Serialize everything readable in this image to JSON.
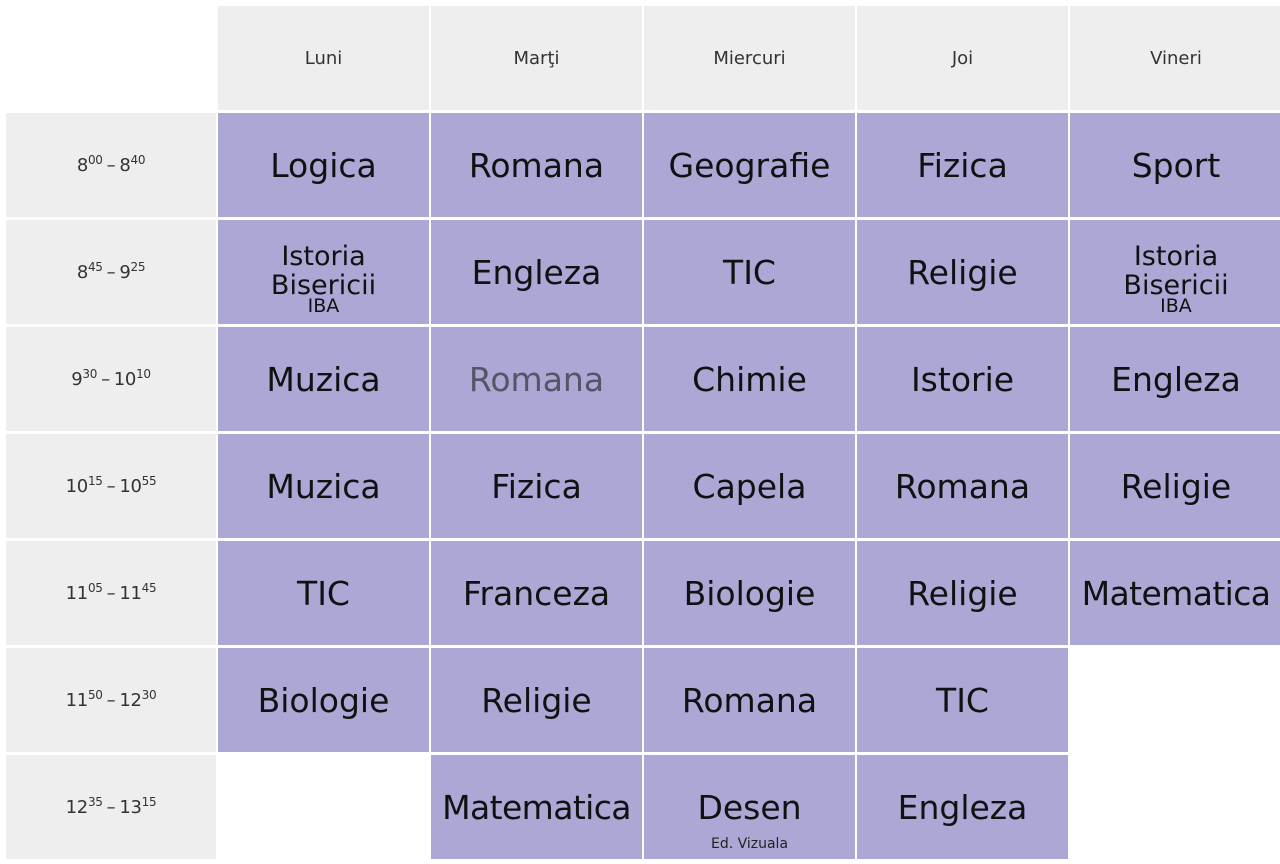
{
  "days": [
    "Luni",
    "Marţi",
    "Miercuri",
    "Joi",
    "Vineri"
  ],
  "periods": [
    {
      "start_h": "8",
      "start_m": "00",
      "end_h": "8",
      "end_m": "40"
    },
    {
      "start_h": "8",
      "start_m": "45",
      "end_h": "9",
      "end_m": "25"
    },
    {
      "start_h": "9",
      "start_m": "30",
      "end_h": "10",
      "end_m": "10"
    },
    {
      "start_h": "10",
      "start_m": "15",
      "end_h": "10",
      "end_m": "55"
    },
    {
      "start_h": "11",
      "start_m": "05",
      "end_h": "11",
      "end_m": "45"
    },
    {
      "start_h": "11",
      "start_m": "50",
      "end_h": "12",
      "end_m": "30"
    },
    {
      "start_h": "12",
      "start_m": "35",
      "end_h": "13",
      "end_m": "15"
    }
  ],
  "time_separator": "–",
  "lessons": [
    [
      {
        "name": "Logica"
      },
      {
        "name": "Romana"
      },
      {
        "name": "Geografie"
      },
      {
        "name": "Fizica"
      },
      {
        "name": "Sport"
      }
    ],
    [
      {
        "name": "Istoria Bisericii",
        "note": "IBA"
      },
      {
        "name": "Engleza"
      },
      {
        "name": "TIC"
      },
      {
        "name": "Religie"
      },
      {
        "name": "Istoria Bisericii",
        "note": "IBA"
      }
    ],
    [
      {
        "name": "Muzica"
      },
      {
        "name": "Romana",
        "faded": true
      },
      {
        "name": "Chimie"
      },
      {
        "name": "Istorie"
      },
      {
        "name": "Engleza"
      }
    ],
    [
      {
        "name": "Muzica"
      },
      {
        "name": "Fizica"
      },
      {
        "name": "Capela"
      },
      {
        "name": "Romana"
      },
      {
        "name": "Religie"
      }
    ],
    [
      {
        "name": "TIC"
      },
      {
        "name": "Franceza"
      },
      {
        "name": "Biologie"
      },
      {
        "name": "Religie"
      },
      {
        "name": "Matematica"
      }
    ],
    [
      {
        "name": "Biologie"
      },
      {
        "name": "Religie"
      },
      {
        "name": "Romana"
      },
      {
        "name": "TIC"
      },
      null
    ],
    [
      null,
      {
        "name": "Matematica"
      },
      {
        "name": "Desen",
        "sub": "Ed. Vizuala"
      },
      {
        "name": "Engleza"
      },
      null
    ]
  ],
  "colors": {
    "lesson_bg": "#aca8d6",
    "header_bg": "#eeeeee",
    "text": "#111111",
    "faded_text": "#555566"
  }
}
